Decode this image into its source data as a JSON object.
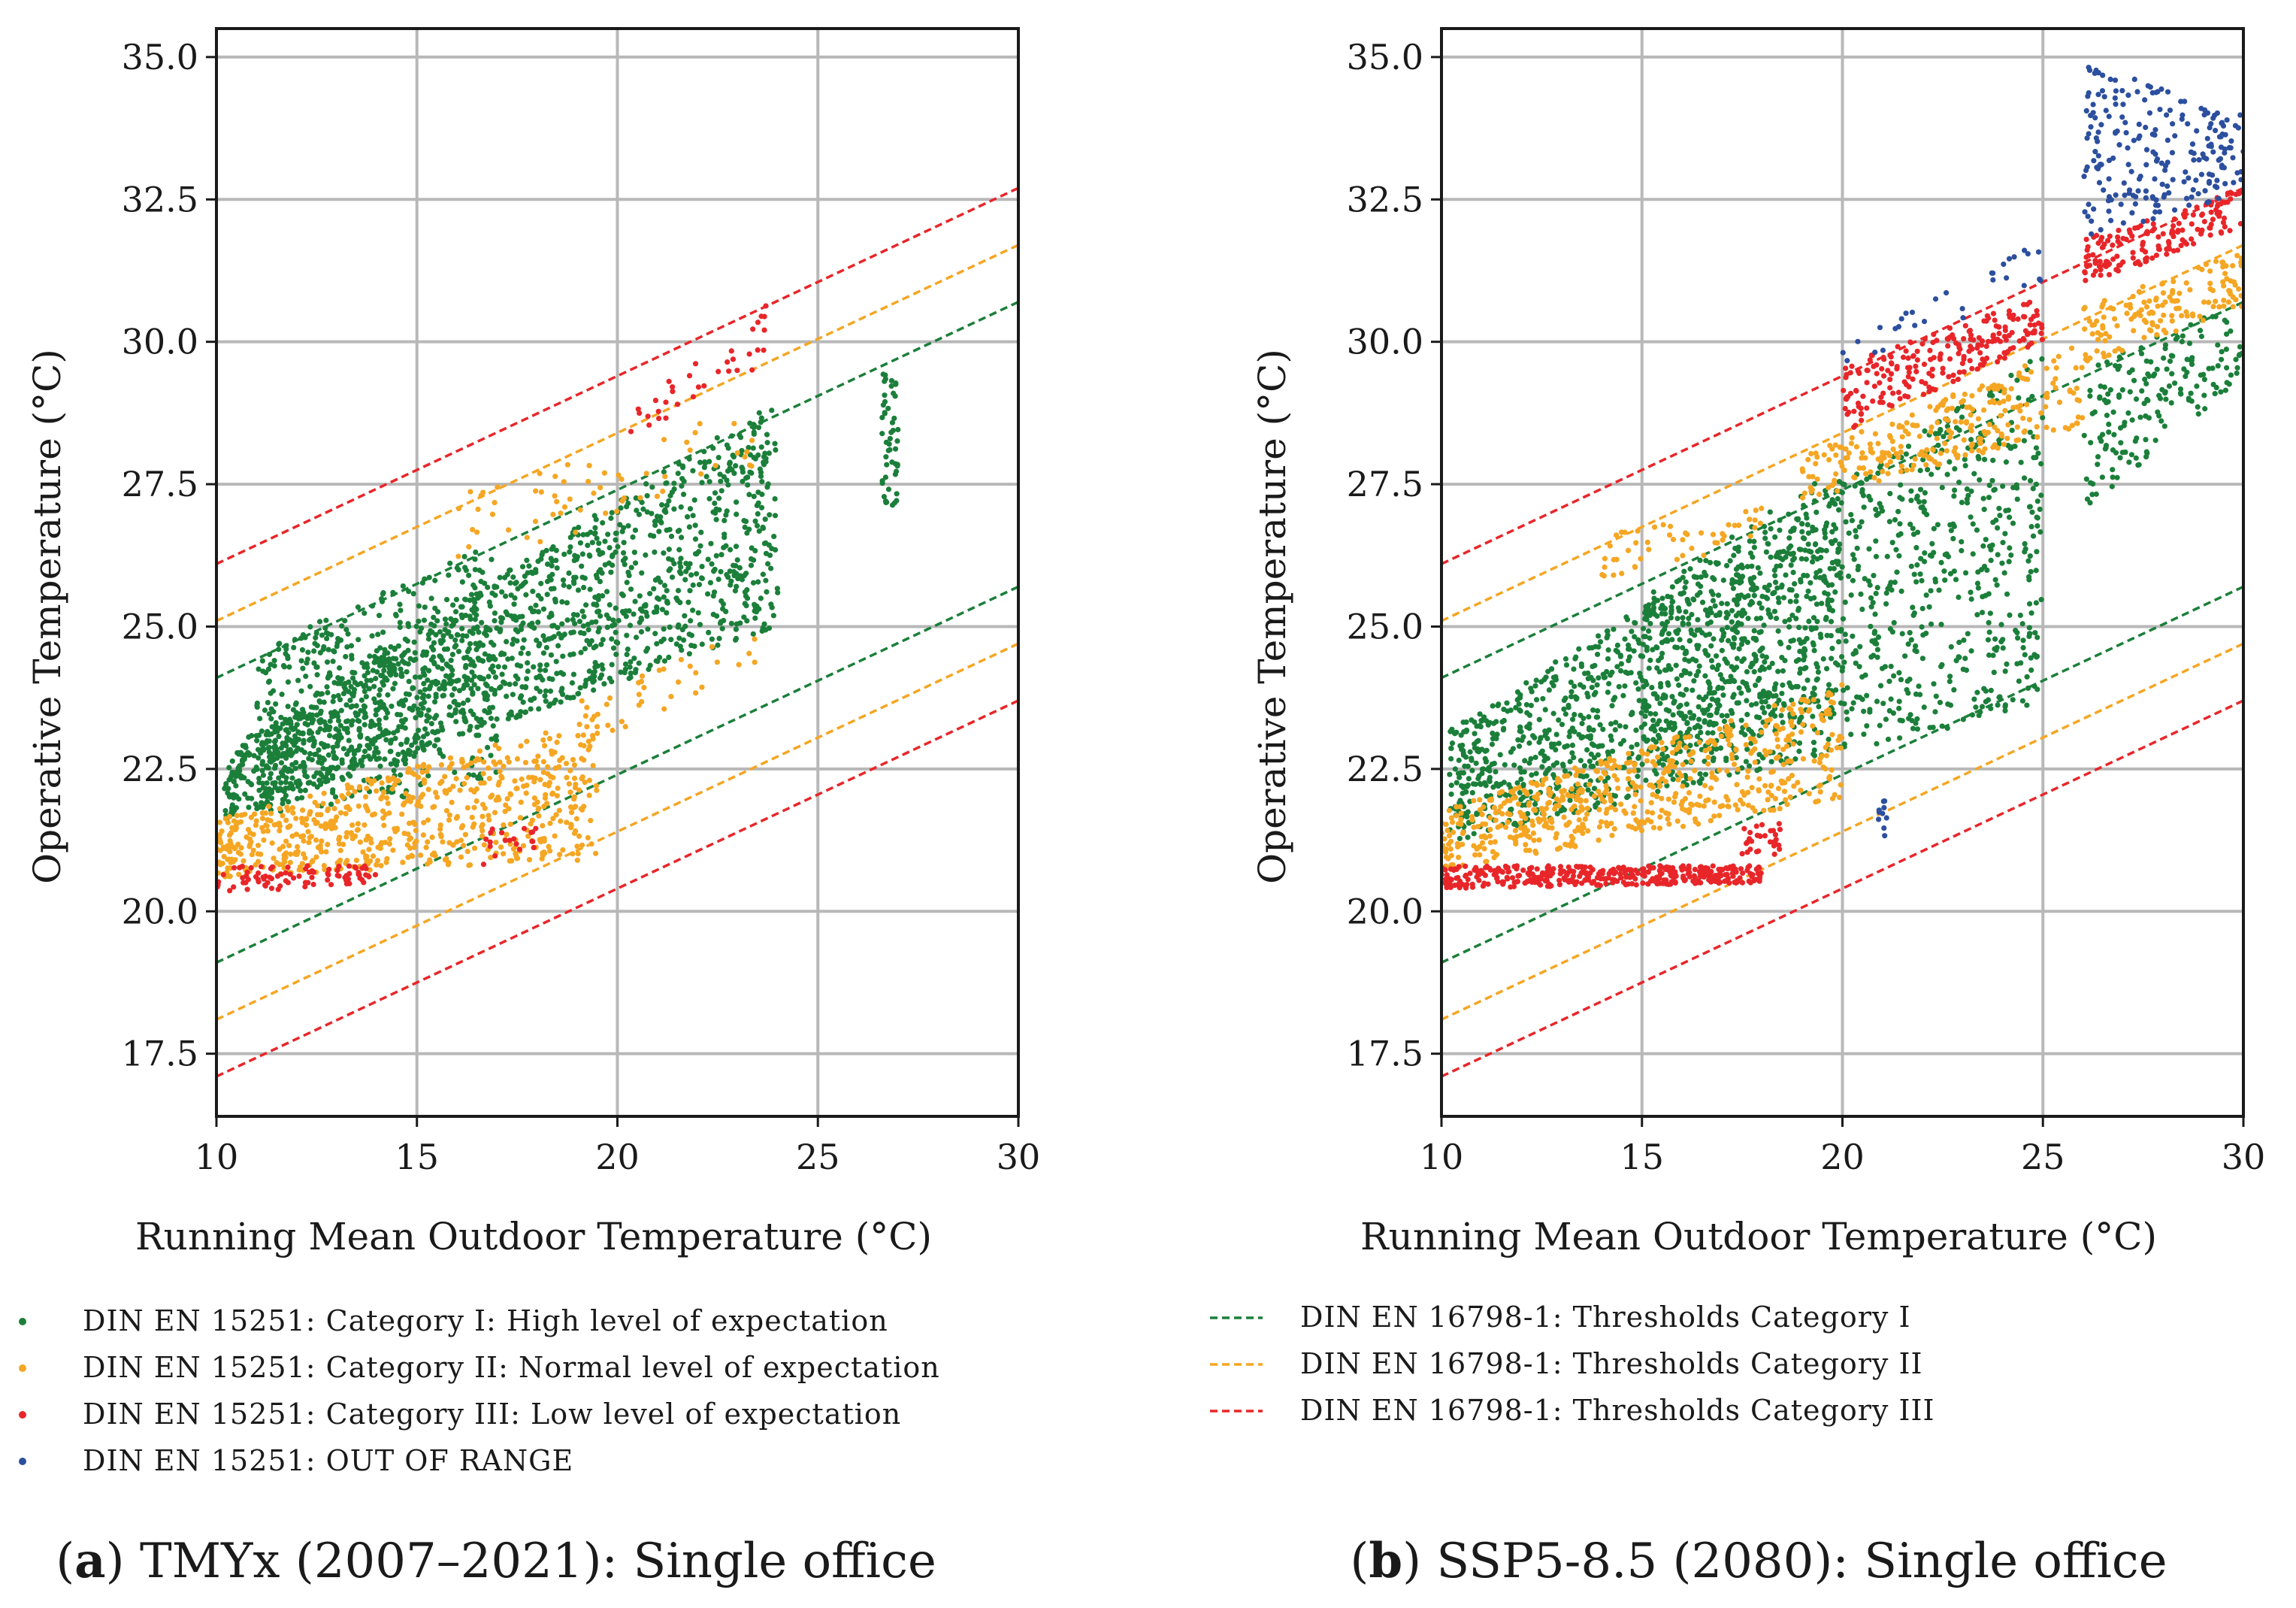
{
  "chart_data": [
    {
      "type": "scatter",
      "caption_letter": "a",
      "caption_text": "TMYx (2007–2021): Single office",
      "xlabel": "Running Mean Outdoor Temperature (°C)",
      "ylabel": "Operative Temperature (°C)",
      "xlim": [
        10,
        30
      ],
      "ylim": [
        16.4,
        35.5
      ],
      "xticks": [
        "10",
        "15",
        "20",
        "25",
        "30"
      ],
      "yticks": [
        "17.5",
        "20.0",
        "22.5",
        "25.0",
        "27.5",
        "30.0",
        "32.5",
        "35.0"
      ],
      "grid": true,
      "threshold_lines": [
        {
          "category": "I",
          "color": "#1b7f3a",
          "upper": [
            [
              10,
              24.1
            ],
            [
              30,
              30.7
            ]
          ],
          "lower": [
            [
              10,
              19.1
            ],
            [
              30,
              25.7
            ]
          ]
        },
        {
          "category": "II",
          "color": "#f5a623",
          "upper": [
            [
              10,
              25.1
            ],
            [
              30,
              31.7
            ]
          ],
          "lower": [
            [
              10,
              18.1
            ],
            [
              30,
              24.7
            ]
          ]
        },
        {
          "category": "III",
          "color": "#e8262a",
          "upper": [
            [
              10,
              26.1
            ],
            [
              30,
              32.7
            ]
          ],
          "lower": [
            [
              10,
              17.1
            ],
            [
              30,
              23.7
            ]
          ]
        }
      ],
      "point_clusters": [
        {
          "category": "I",
          "color": "#1b7f3a",
          "x": [
            10.2,
            24.0
          ],
          "y_low": [
            21.6,
            25.0
          ],
          "y_high": [
            22.8,
            29.0
          ],
          "n": 1500
        },
        {
          "category": "I",
          "color": "#1b7f3a",
          "x": [
            11.0,
            17.0
          ],
          "y_low": [
            21.7,
            22.2
          ],
          "y_high": [
            24.6,
            26.5
          ],
          "n": 500
        },
        {
          "category": "I",
          "color": "#1b7f3a",
          "x": [
            26.6,
            27.0
          ],
          "y_low": [
            27.1,
            27.1
          ],
          "y_high": [
            29.5,
            29.5
          ],
          "n": 50
        },
        {
          "category": "II",
          "color": "#f5a623",
          "x": [
            10.0,
            19.5
          ],
          "y_low": [
            20.6,
            20.9
          ],
          "y_high": [
            21.6,
            23.4
          ],
          "n": 650
        },
        {
          "category": "II",
          "color": "#f5a623",
          "x": [
            16.0,
            23.5
          ],
          "y_low": [
            25.9,
            27.8
          ],
          "y_high": [
            27.3,
            28.9
          ],
          "n": 60
        },
        {
          "category": "II",
          "color": "#f5a623",
          "x": [
            19.0,
            23.5
          ],
          "y_low": [
            22.8,
            24.3
          ],
          "y_high": [
            23.7,
            25.0
          ],
          "n": 40
        },
        {
          "category": "III",
          "color": "#e8262a",
          "x": [
            10.0,
            14.0
          ],
          "y_low": [
            20.3,
            20.5
          ],
          "y_high": [
            20.8,
            20.8
          ],
          "n": 90
        },
        {
          "category": "III",
          "color": "#e8262a",
          "x": [
            16.5,
            18.0
          ],
          "y_low": [
            20.8,
            21.0
          ],
          "y_high": [
            21.5,
            21.6
          ],
          "n": 20
        },
        {
          "category": "III",
          "color": "#e8262a",
          "x": [
            20.0,
            23.8
          ],
          "y_low": [
            28.2,
            29.6
          ],
          "y_high": [
            28.6,
            30.7
          ],
          "n": 35
        }
      ]
    },
    {
      "type": "scatter",
      "caption_letter": "b",
      "caption_text": "SSP5-8.5 (2080): Single office",
      "xlabel": "Running Mean Outdoor Temperature (°C)",
      "ylabel": "Operative Temperature (°C)",
      "xlim": [
        10,
        30
      ],
      "ylim": [
        16.4,
        35.5
      ],
      "xticks": [
        "10",
        "15",
        "20",
        "25",
        "30"
      ],
      "yticks": [
        "17.5",
        "20.0",
        "22.5",
        "25.0",
        "27.5",
        "30.0",
        "32.5",
        "35.0"
      ],
      "grid": true,
      "threshold_lines": [
        {
          "category": "I",
          "color": "#1b7f3a",
          "upper": [
            [
              10,
              24.1
            ],
            [
              30,
              30.7
            ]
          ],
          "lower": [
            [
              10,
              19.1
            ],
            [
              30,
              25.7
            ]
          ]
        },
        {
          "category": "II",
          "color": "#f5a623",
          "upper": [
            [
              10,
              25.1
            ],
            [
              30,
              31.7
            ]
          ],
          "lower": [
            [
              10,
              18.1
            ],
            [
              30,
              24.7
            ]
          ]
        },
        {
          "category": "III",
          "color": "#e8262a",
          "upper": [
            [
              10,
              26.1
            ],
            [
              30,
              32.7
            ]
          ],
          "lower": [
            [
              10,
              17.1
            ],
            [
              30,
              23.7
            ]
          ]
        }
      ],
      "point_clusters": [
        {
          "category": "I",
          "color": "#1b7f3a",
          "x": [
            10.2,
            25.0
          ],
          "y_low": [
            21.2,
            23.6
          ],
          "y_high": [
            23.2,
            29.8
          ],
          "n": 1600
        },
        {
          "category": "I",
          "color": "#1b7f3a",
          "x": [
            15.0,
            20.0
          ],
          "y_low": [
            22.5,
            23.5
          ],
          "y_high": [
            25.5,
            28.0
          ],
          "n": 400
        },
        {
          "category": "I",
          "color": "#1b7f3a",
          "x": [
            26.0,
            30.0
          ],
          "y_low": [
            27.0,
            29.4
          ],
          "y_high": [
            29.5,
            30.8
          ],
          "n": 180
        },
        {
          "category": "II",
          "color": "#f5a623",
          "x": [
            10.0,
            20.0
          ],
          "y_low": [
            20.7,
            22.0
          ],
          "y_high": [
            21.8,
            24.0
          ],
          "n": 600
        },
        {
          "category": "II",
          "color": "#f5a623",
          "x": [
            19.0,
            26.0
          ],
          "y_low": [
            27.2,
            28.5
          ],
          "y_high": [
            28.0,
            30.0
          ],
          "n": 260
        },
        {
          "category": "II",
          "color": "#f5a623",
          "x": [
            26.0,
            30.0
          ],
          "y_low": [
            29.6,
            30.6
          ],
          "y_high": [
            30.6,
            31.6
          ],
          "n": 140
        },
        {
          "category": "II",
          "color": "#f5a623",
          "x": [
            14.0,
            18.0
          ],
          "y_low": [
            25.8,
            26.5
          ],
          "y_high": [
            26.6,
            27.1
          ],
          "n": 50
        },
        {
          "category": "III",
          "color": "#e8262a",
          "x": [
            10.0,
            18.0
          ],
          "y_low": [
            20.4,
            20.5
          ],
          "y_high": [
            20.8,
            20.8
          ],
          "n": 380
        },
        {
          "category": "III",
          "color": "#e8262a",
          "x": [
            17.5,
            18.5
          ],
          "y_low": [
            21.0,
            21.0
          ],
          "y_high": [
            21.5,
            21.6
          ],
          "n": 30
        },
        {
          "category": "III",
          "color": "#e8262a",
          "x": [
            20.0,
            25.0
          ],
          "y_low": [
            28.4,
            30.0
          ],
          "y_high": [
            29.6,
            30.8
          ],
          "n": 220
        },
        {
          "category": "III",
          "color": "#e8262a",
          "x": [
            26.0,
            30.0
          ],
          "y_low": [
            31.0,
            32.0
          ],
          "y_high": [
            31.8,
            32.7
          ],
          "n": 160
        },
        {
          "category": "IV",
          "color": "#2c4f9e",
          "x": [
            20.0,
            25.0
          ],
          "y_low": [
            29.6,
            30.8
          ],
          "y_high": [
            29.9,
            31.8
          ],
          "n": 30
        },
        {
          "category": "IV",
          "color": "#2c4f9e",
          "x": [
            26.0,
            30.0
          ],
          "y_low": [
            31.8,
            32.6
          ],
          "y_high": [
            34.9,
            34.0
          ],
          "n": 220
        },
        {
          "category": "IV",
          "color": "#2c4f9e",
          "x": [
            20.8,
            21.2
          ],
          "y_low": [
            21.3,
            21.3
          ],
          "y_high": [
            22.0,
            22.0
          ],
          "n": 10
        }
      ]
    }
  ],
  "legend_points": [
    {
      "label": "DIN EN 15251: Category I: High level of expectation",
      "color": "#1b7f3a"
    },
    {
      "label": "DIN EN 15251: Category II: Normal level of expectation",
      "color": "#f5a623"
    },
    {
      "label": "DIN EN 15251: Category III: Low level of expectation",
      "color": "#e8262a"
    },
    {
      "label": "DIN EN 15251: OUT OF RANGE",
      "color": "#2c4f9e"
    }
  ],
  "legend_lines": [
    {
      "label": "DIN EN 16798-1: Thresholds Category I",
      "color": "#1b7f3a"
    },
    {
      "label": "DIN EN 16798-1: Thresholds Category II",
      "color": "#f5a623"
    },
    {
      "label": "DIN EN 16798-1: Thresholds Category III",
      "color": "#e8262a"
    }
  ]
}
